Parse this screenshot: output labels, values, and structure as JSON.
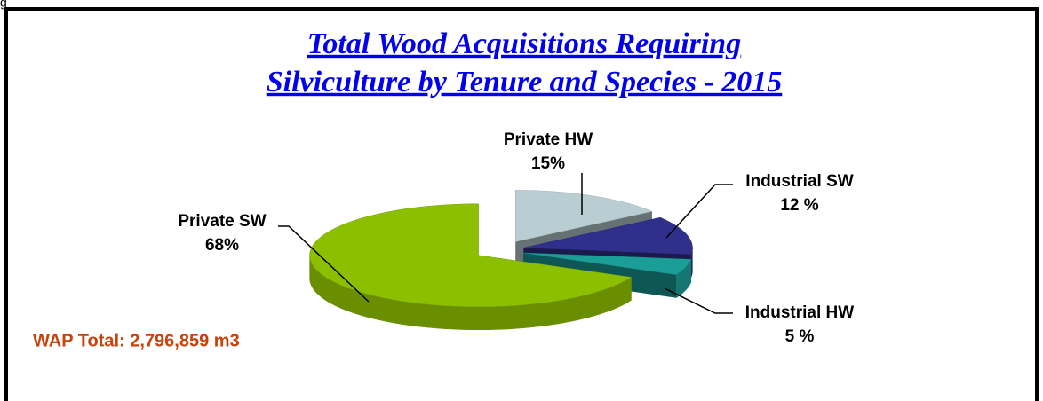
{
  "corner_text": "g",
  "chart_data": {
    "type": "pie3d",
    "title": [
      "Total Wood Acquisitions Requiring",
      "Silviculture by Tenure and Species - 2015"
    ],
    "categories": [
      "Private HW",
      "Industrial SW",
      "Industrial HW",
      "Private SW"
    ],
    "values": [
      15,
      12,
      5,
      68
    ],
    "value_labels": [
      "15%",
      "12 %",
      "5 %",
      "68%"
    ],
    "colors": [
      "#b9ced3",
      "#2f2f8c",
      "#1c9e98",
      "#8cbf00"
    ],
    "annotation": "WAP Total: 2,796,859 m3"
  }
}
